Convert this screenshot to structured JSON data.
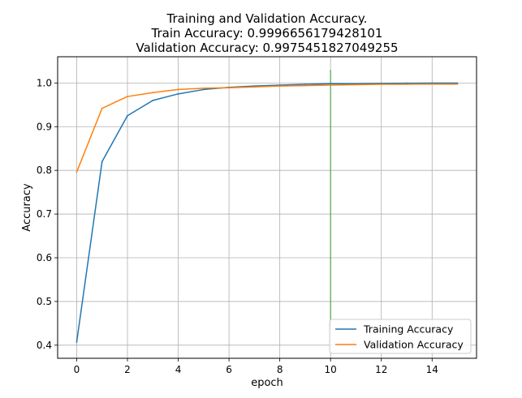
{
  "chart_data": {
    "type": "line",
    "title_lines": [
      "Training and Validation Accuracy.",
      "Train Accuracy: 0.9996656179428101",
      "Validation Accuracy: 0.9975451827049255"
    ],
    "xlabel": "epoch",
    "ylabel": "Accuracy",
    "xlim": [
      -0.75,
      15.75
    ],
    "ylim": [
      0.37,
      1.06
    ],
    "xticks": [
      0,
      2,
      4,
      6,
      8,
      10,
      12,
      14
    ],
    "yticks": [
      0.4,
      0.5,
      0.6,
      0.7,
      0.8,
      0.9,
      1.0
    ],
    "ytick_labels": [
      "0.4",
      "0.5",
      "0.6",
      "0.7",
      "0.8",
      "0.9",
      "1.0"
    ],
    "grid": true,
    "legend_position": "lower-right",
    "x": [
      0,
      1,
      2,
      3,
      4,
      5,
      6,
      7,
      8,
      9,
      10,
      11,
      12,
      13,
      14,
      15
    ],
    "series": [
      {
        "name": "Training Accuracy",
        "color": "#1f77b4",
        "values": [
          0.407,
          0.82,
          0.925,
          0.96,
          0.975,
          0.985,
          0.99,
          0.993,
          0.995,
          0.997,
          0.998,
          0.998,
          0.999,
          0.9995,
          0.9997,
          0.9997
        ]
      },
      {
        "name": "Validation Accuracy",
        "color": "#ff7f0e",
        "values": [
          0.796,
          0.942,
          0.969,
          0.978,
          0.985,
          0.988,
          0.989,
          0.991,
          0.993,
          0.994,
          0.995,
          0.996,
          0.997,
          0.997,
          0.9975,
          0.9975
        ]
      }
    ],
    "vertical_marker": {
      "x": 10,
      "y_range": [
        0.44,
        1.03
      ],
      "color": "#2ca02c"
    }
  }
}
